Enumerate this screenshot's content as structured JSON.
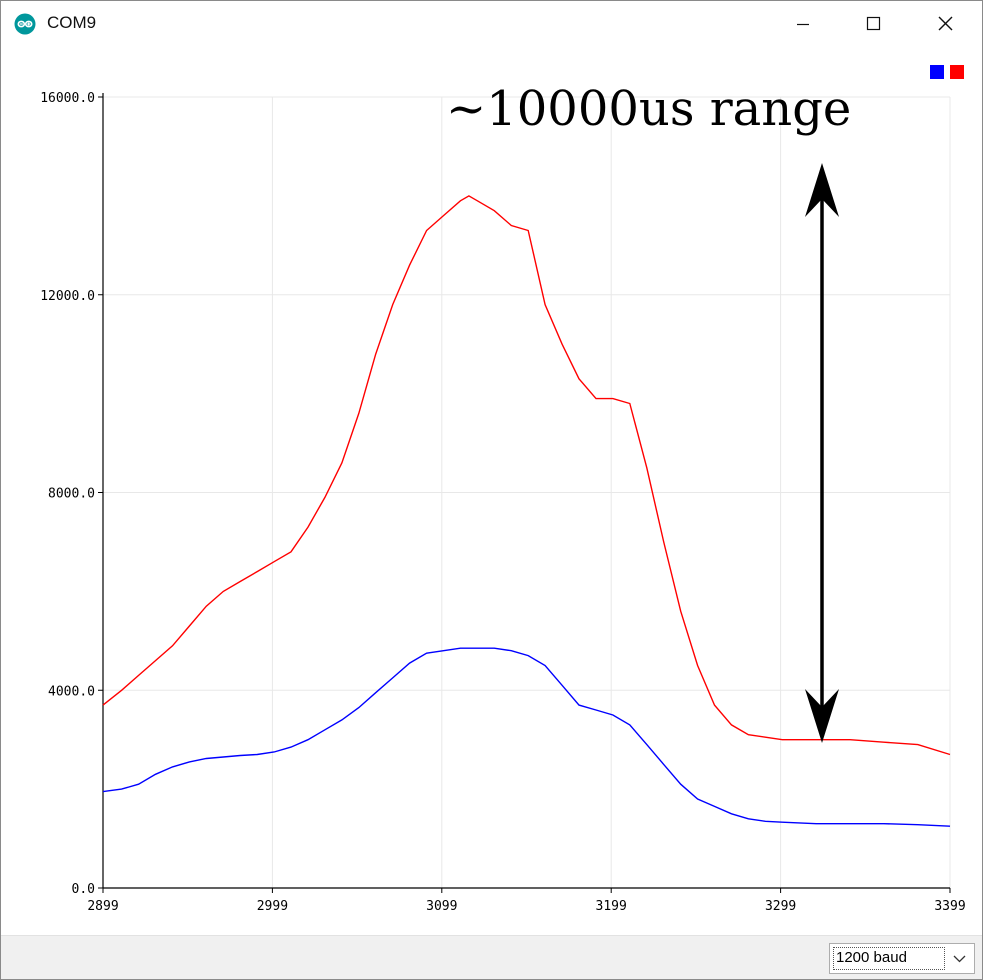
{
  "window": {
    "title": "COM9",
    "icon": "arduino-icon",
    "controls": [
      "minimize-icon",
      "maximize-icon",
      "close-icon"
    ]
  },
  "annotation": {
    "text": "~10000us range",
    "icon": "double-arrow-icon"
  },
  "legend": {
    "colors": [
      "#0000ff",
      "#ff0000"
    ]
  },
  "footer": {
    "baud_value": "1200 baud",
    "icon": "chevron-down-icon"
  },
  "chart_data": {
    "type": "line",
    "xlim": [
      2899,
      3399
    ],
    "ylim": [
      0,
      16000
    ],
    "x_ticks": [
      "2899",
      "2999",
      "3099",
      "3199",
      "3299",
      "3399"
    ],
    "y_ticks": [
      "0.0",
      "4000.0",
      "8000.0",
      "12000.0",
      "16000.0"
    ],
    "grid": true,
    "legend_position": "top-right",
    "series": [
      {
        "color": "#ff0000",
        "x": [
          2899,
          2910,
          2920,
          2930,
          2940,
          2950,
          2960,
          2970,
          2980,
          2990,
          3000,
          3010,
          3020,
          3030,
          3040,
          3050,
          3060,
          3070,
          3080,
          3090,
          3100,
          3110,
          3115,
          3120,
          3130,
          3140,
          3150,
          3160,
          3170,
          3180,
          3190,
          3200,
          3210,
          3220,
          3230,
          3240,
          3250,
          3260,
          3270,
          3280,
          3290,
          3300,
          3310,
          3320,
          3340,
          3360,
          3380,
          3399
        ],
        "y": [
          3700,
          4000,
          4300,
          4600,
          4900,
          5300,
          5700,
          6000,
          6200,
          6400,
          6600,
          6800,
          7300,
          7900,
          8600,
          9600,
          10800,
          11800,
          12600,
          13300,
          13600,
          13900,
          14000,
          13900,
          13700,
          13400,
          13300,
          11800,
          11000,
          10300,
          9900,
          9900,
          9800,
          8500,
          7000,
          5600,
          4500,
          3700,
          3300,
          3100,
          3050,
          3000,
          3000,
          3000,
          3000,
          2950,
          2900,
          2700
        ]
      },
      {
        "color": "#0000ff",
        "x": [
          2899,
          2910,
          2920,
          2930,
          2940,
          2950,
          2960,
          2970,
          2980,
          2990,
          3000,
          3010,
          3020,
          3030,
          3040,
          3050,
          3060,
          3070,
          3080,
          3090,
          3100,
          3110,
          3120,
          3130,
          3140,
          3150,
          3160,
          3170,
          3180,
          3190,
          3200,
          3210,
          3220,
          3230,
          3240,
          3250,
          3260,
          3270,
          3280,
          3290,
          3300,
          3320,
          3340,
          3360,
          3380,
          3399
        ],
        "y": [
          1950,
          2000,
          2100,
          2300,
          2450,
          2550,
          2620,
          2650,
          2680,
          2700,
          2750,
          2850,
          3000,
          3200,
          3400,
          3650,
          3950,
          4250,
          4550,
          4750,
          4800,
          4850,
          4850,
          4850,
          4800,
          4700,
          4500,
          4100,
          3700,
          3600,
          3500,
          3300,
          2900,
          2500,
          2100,
          1800,
          1650,
          1500,
          1400,
          1350,
          1330,
          1300,
          1300,
          1300,
          1280,
          1250
        ]
      }
    ]
  }
}
